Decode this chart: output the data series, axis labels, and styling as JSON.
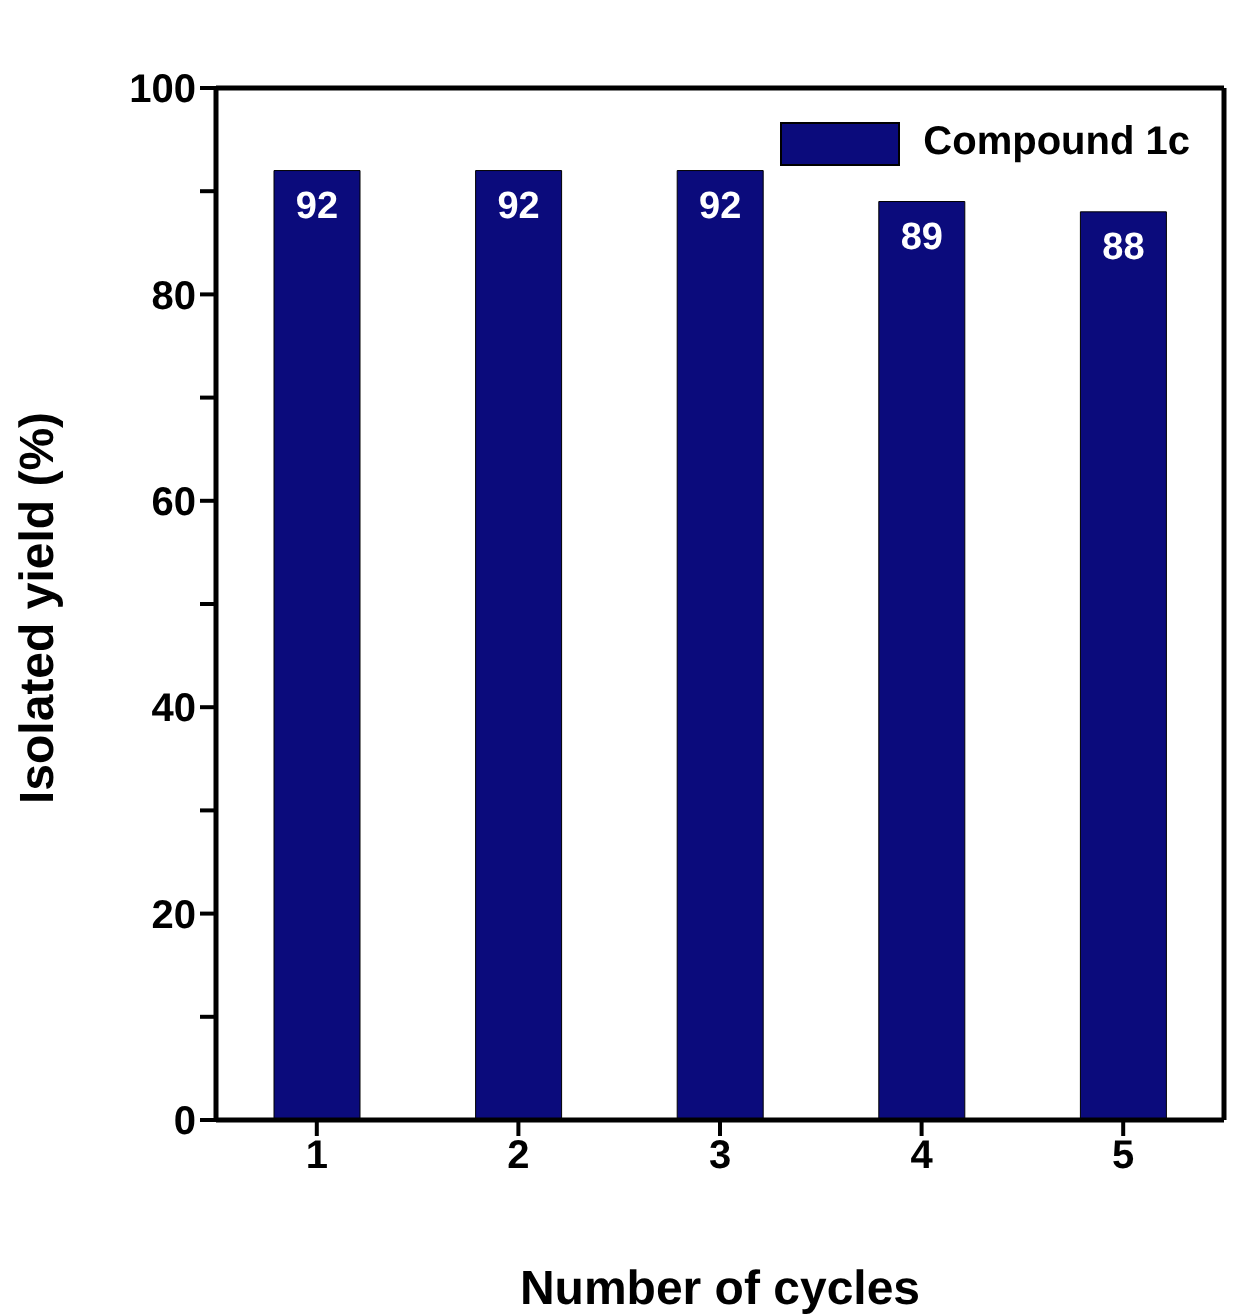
{
  "chart_data": {
    "type": "bar",
    "xlabel": "Number of cycles",
    "ylabel": "Isolated yield (%)",
    "categories": [
      "1",
      "2",
      "3",
      "4",
      "5"
    ],
    "series": [
      {
        "name": "Compound 1c",
        "color": "#0b0b7c",
        "values": [
          92,
          92,
          92,
          89,
          88
        ]
      }
    ],
    "ylim": [
      0,
      100
    ],
    "yticks": [
      0,
      {
        "value": 10,
        "label": null
      },
      20,
      {
        "value": 30,
        "label": null
      },
      40,
      {
        "value": 50,
        "label": null
      },
      60,
      {
        "value": 70,
        "label": null
      },
      80,
      {
        "value": 90,
        "label": null
      },
      100
    ],
    "data_labels": true,
    "legend": "top right",
    "grid": false
  }
}
